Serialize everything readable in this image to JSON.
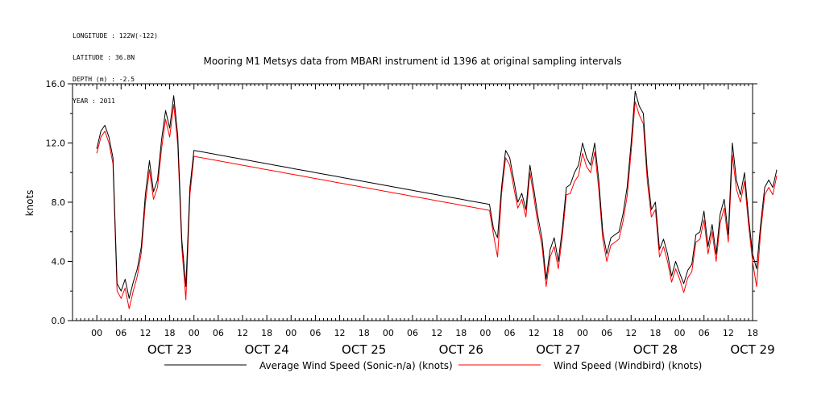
{
  "metadata": [
    "LONGITUDE : 122W(-122)",
    "LATITUDE : 36.8N",
    "DEPTH (m) : -2.5",
    "YEAR : 2011"
  ],
  "chart_data": {
    "type": "line",
    "title": "Mooring M1 Metsys data from MBARI instrument id 1396 at original sampling intervals",
    "ylabel": "knots",
    "xlabel": "",
    "ylim": [
      0,
      16
    ],
    "yticks": [
      "0.0",
      "4.0",
      "8.0",
      "12.0",
      "16.0"
    ],
    "xlim_hours": [
      -6,
      162
    ],
    "hour_ticks": [
      "00",
      "06",
      "12",
      "18",
      "00",
      "06",
      "12",
      "18",
      "00",
      "06",
      "12",
      "18",
      "00",
      "06",
      "12",
      "18",
      "00",
      "06",
      "12",
      "18",
      "00",
      "06",
      "12",
      "18",
      "00",
      "06",
      "12",
      "18"
    ],
    "day_labels": [
      "OCT 23",
      "OCT 24",
      "OCT 25",
      "OCT 26",
      "OCT 27",
      "OCT 28",
      "OCT 29"
    ],
    "x_unit": "hours since Oct 22 18:00",
    "series": [
      {
        "name": "Average Wind Speed (Sonic-n/a) (knots)",
        "color": "#000000",
        "x": [
          0,
          1,
          2,
          3,
          4,
          5,
          6,
          7,
          8,
          9,
          10,
          11,
          12,
          13,
          14,
          15,
          16,
          17,
          18,
          19,
          20,
          21,
          22,
          23,
          24,
          25,
          26,
          27,
          28,
          29,
          30,
          31,
          32,
          33,
          34,
          35,
          36,
          37,
          38,
          39,
          40,
          41,
          42,
          43,
          44,
          45,
          46,
          47,
          48,
          49,
          50,
          51,
          52,
          53,
          54,
          55,
          56,
          57,
          58,
          59,
          60,
          61,
          62,
          63,
          64,
          65,
          66,
          67,
          68,
          69,
          70,
          71,
          72,
          73,
          74,
          75,
          76,
          77,
          78,
          79,
          80,
          81,
          82,
          83,
          84,
          85,
          86,
          87,
          88,
          89,
          90,
          91,
          92,
          93,
          94,
          95,
          96,
          97,
          98,
          99,
          100,
          101,
          102,
          103,
          104,
          105,
          106,
          107,
          108,
          109,
          110,
          111,
          112,
          113,
          114,
          115,
          116,
          117,
          118,
          119,
          120,
          121,
          122,
          123,
          124,
          125,
          126,
          127,
          128,
          129,
          130,
          131,
          132,
          133,
          134,
          135,
          136,
          137,
          138,
          139,
          140,
          141,
          142,
          143,
          144,
          145,
          146,
          147,
          148,
          149,
          150,
          151,
          152,
          153,
          154,
          155,
          156,
          157,
          158,
          159,
          160,
          161,
          162,
          163,
          164,
          165,
          166,
          167,
          168
        ],
        "values": [
          11.6,
          12.8,
          13.2,
          12.4,
          11.0,
          2.5,
          2.0,
          2.8,
          1.5,
          2.6,
          3.5,
          5.0,
          8.5,
          10.8,
          8.7,
          9.5,
          12.2,
          14.2,
          13.0,
          15.2,
          12.5,
          5.5,
          2.3,
          9.0,
          11.5,
          11.45,
          11.4,
          11.35,
          11.3,
          11.25,
          11.2,
          11.15,
          11.1,
          11.05,
          11.0,
          10.95,
          10.9,
          10.85,
          10.8,
          10.75,
          10.7,
          10.65,
          10.6,
          10.55,
          10.5,
          10.45,
          10.4,
          10.35,
          10.3,
          10.25,
          10.2,
          10.15,
          10.1,
          10.05,
          10.0,
          9.95,
          9.9,
          9.85,
          9.8,
          9.75,
          9.7,
          9.65,
          9.6,
          9.55,
          9.5,
          9.45,
          9.4,
          9.35,
          9.3,
          9.25,
          9.2,
          9.15,
          9.1,
          9.05,
          9.0,
          8.95,
          8.9,
          8.85,
          8.8,
          8.75,
          8.7,
          8.65,
          8.6,
          8.55,
          8.5,
          8.45,
          8.4,
          8.35,
          8.3,
          8.25,
          8.2,
          8.15,
          8.1,
          8.05,
          8.0,
          7.95,
          7.9,
          7.85,
          6.2,
          5.6,
          9.0,
          11.5,
          11.0,
          9.5,
          8.0,
          8.6,
          7.5,
          10.5,
          8.8,
          7.0,
          5.5,
          2.8,
          4.8,
          5.6,
          4.0,
          6.2,
          9.0,
          9.2,
          10.0,
          10.5,
          12.0,
          11.0,
          10.5,
          12.0,
          9.5,
          6.0,
          4.5,
          5.6,
          5.8,
          6.0,
          7.2,
          9.0,
          12.0,
          15.5,
          14.5,
          14.0,
          10.0,
          7.5,
          8.0,
          4.8,
          5.5,
          4.5,
          3.0,
          4.0,
          3.2,
          2.5,
          3.4,
          3.8,
          5.8,
          6.0,
          7.4,
          5.0,
          6.5,
          4.5,
          7.2,
          8.2,
          5.8,
          12.0,
          9.5,
          8.5,
          10.0,
          7.0,
          4.5,
          3.5,
          6.5,
          9.0,
          9.5,
          9.0,
          10.2
        ]
      },
      {
        "name": "Wind Speed (Windbird) (knots)",
        "color": "#ff0000",
        "x": [
          0,
          1,
          2,
          3,
          4,
          5,
          6,
          7,
          8,
          9,
          10,
          11,
          12,
          13,
          14,
          15,
          16,
          17,
          18,
          19,
          20,
          21,
          22,
          23,
          24,
          25,
          26,
          27,
          28,
          29,
          30,
          31,
          32,
          33,
          34,
          35,
          36,
          37,
          38,
          39,
          40,
          41,
          42,
          43,
          44,
          45,
          46,
          47,
          48,
          49,
          50,
          51,
          52,
          53,
          54,
          55,
          56,
          57,
          58,
          59,
          60,
          61,
          62,
          63,
          64,
          65,
          66,
          67,
          68,
          69,
          70,
          71,
          72,
          73,
          74,
          75,
          76,
          77,
          78,
          79,
          80,
          81,
          82,
          83,
          84,
          85,
          86,
          87,
          88,
          89,
          90,
          91,
          92,
          93,
          94,
          95,
          96,
          97,
          98,
          99,
          100,
          101,
          102,
          103,
          104,
          105,
          106,
          107,
          108,
          109,
          110,
          111,
          112,
          113,
          114,
          115,
          116,
          117,
          118,
          119,
          120,
          121,
          122,
          123,
          124,
          125,
          126,
          127,
          128,
          129,
          130,
          131,
          132,
          133,
          134,
          135,
          136,
          137,
          138,
          139,
          140,
          141,
          142,
          143,
          144,
          145,
          146,
          147,
          148,
          149,
          150,
          151,
          152,
          153,
          154,
          155,
          156,
          157,
          158,
          159,
          160,
          161,
          162,
          163,
          164,
          165,
          166,
          167,
          168
        ],
        "values": [
          11.3,
          12.4,
          12.8,
          12.0,
          10.6,
          2.0,
          1.5,
          2.2,
          0.8,
          2.0,
          3.0,
          4.6,
          7.9,
          10.2,
          8.2,
          9.0,
          11.6,
          13.6,
          12.4,
          14.6,
          11.9,
          5.0,
          1.4,
          8.5,
          11.1,
          11.05,
          11.0,
          10.95,
          10.9,
          10.85,
          10.8,
          10.75,
          10.7,
          10.65,
          10.6,
          10.55,
          10.5,
          10.45,
          10.4,
          10.35,
          10.3,
          10.25,
          10.2,
          10.15,
          10.1,
          10.05,
          10.0,
          9.95,
          9.9,
          9.85,
          9.8,
          9.75,
          9.7,
          9.65,
          9.6,
          9.55,
          9.5,
          9.45,
          9.4,
          9.35,
          9.3,
          9.25,
          9.2,
          9.15,
          9.1,
          9.05,
          9.0,
          8.95,
          8.9,
          8.85,
          8.8,
          8.75,
          8.7,
          8.65,
          8.6,
          8.55,
          8.5,
          8.45,
          8.4,
          8.35,
          8.3,
          8.25,
          8.2,
          8.15,
          8.1,
          8.05,
          8.0,
          7.95,
          7.9,
          7.85,
          7.8,
          7.75,
          7.7,
          7.65,
          7.6,
          7.55,
          7.5,
          7.45,
          5.8,
          4.3,
          8.6,
          11.0,
          10.5,
          9.0,
          7.6,
          8.2,
          7.0,
          10.0,
          8.3,
          6.5,
          5.0,
          2.3,
          4.3,
          5.0,
          3.5,
          5.7,
          8.5,
          8.6,
          9.4,
          9.8,
          11.3,
          10.4,
          10.0,
          11.4,
          8.9,
          5.5,
          4.0,
          5.1,
          5.3,
          5.5,
          6.7,
          8.4,
          11.4,
          14.8,
          13.9,
          13.3,
          9.4,
          7.0,
          7.5,
          4.3,
          5.0,
          4.0,
          2.6,
          3.5,
          2.8,
          1.9,
          2.9,
          3.3,
          5.3,
          5.5,
          6.8,
          4.5,
          6.0,
          4.0,
          6.6,
          7.6,
          5.3,
          11.2,
          8.9,
          8.0,
          9.4,
          6.5,
          4.0,
          2.3,
          6.0,
          8.5,
          9.0,
          8.5,
          9.8
        ]
      }
    ],
    "legend_position": "bottom-center",
    "grid": false
  }
}
